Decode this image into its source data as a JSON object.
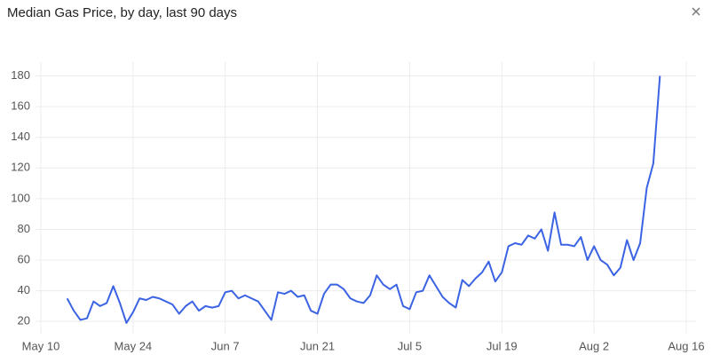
{
  "chart_data": {
    "type": "line",
    "title": "Median Gas Price, by day, last 90 days",
    "x": [
      "May 14",
      "May 15",
      "May 16",
      "May 17",
      "May 18",
      "May 19",
      "May 20",
      "May 21",
      "May 22",
      "May 23",
      "May 24",
      "May 25",
      "May 26",
      "May 27",
      "May 28",
      "May 29",
      "May 30",
      "May 31",
      "Jun 1",
      "Jun 2",
      "Jun 3",
      "Jun 4",
      "Jun 5",
      "Jun 6",
      "Jun 7",
      "Jun 8",
      "Jun 9",
      "Jun 10",
      "Jun 11",
      "Jun 12",
      "Jun 13",
      "Jun 14",
      "Jun 15",
      "Jun 16",
      "Jun 17",
      "Jun 18",
      "Jun 19",
      "Jun 20",
      "Jun 21",
      "Jun 22",
      "Jun 23",
      "Jun 24",
      "Jun 25",
      "Jun 26",
      "Jun 27",
      "Jun 28",
      "Jun 29",
      "Jun 30",
      "Jul 1",
      "Jul 2",
      "Jul 3",
      "Jul 4",
      "Jul 5",
      "Jul 6",
      "Jul 7",
      "Jul 8",
      "Jul 9",
      "Jul 10",
      "Jul 11",
      "Jul 12",
      "Jul 13",
      "Jul 14",
      "Jul 15",
      "Jul 16",
      "Jul 17",
      "Jul 18",
      "Jul 19",
      "Jul 20",
      "Jul 21",
      "Jul 22",
      "Jul 23",
      "Jul 24",
      "Jul 25",
      "Jul 26",
      "Jul 27",
      "Jul 28",
      "Jul 29",
      "Jul 30",
      "Jul 31",
      "Aug 1",
      "Aug 2",
      "Aug 3",
      "Aug 4",
      "Aug 5",
      "Aug 6",
      "Aug 7",
      "Aug 8",
      "Aug 9",
      "Aug 10",
      "Aug 11",
      "Aug 12"
    ],
    "series": [
      {
        "color": "#3b63e3",
        "values": [
          35,
          27,
          21,
          22,
          33,
          30,
          32,
          43,
          32,
          19,
          26,
          35,
          34,
          36,
          35,
          33,
          31,
          25,
          30,
          33,
          27,
          30,
          29,
          30,
          39,
          40,
          35,
          37,
          35,
          33,
          27,
          21,
          39,
          38,
          40,
          36,
          37,
          27,
          25,
          38,
          44,
          44,
          41,
          35,
          33,
          32,
          37,
          50,
          44,
          41,
          44,
          30,
          28,
          39,
          40,
          50,
          43,
          36,
          32,
          29,
          47,
          43,
          48,
          52,
          59,
          46,
          52,
          69,
          71,
          70,
          76,
          74,
          80,
          66,
          91,
          70,
          70,
          69,
          75,
          60,
          69,
          60,
          57,
          50,
          55,
          73,
          60,
          71,
          107,
          123,
          180
        ]
      }
    ],
    "xlim": [
      "May 10",
      "Aug 16"
    ],
    "xticks": [
      "May 10",
      "May 24",
      "Jun 7",
      "Jun 21",
      "Jul 5",
      "Jul 19",
      "Aug 2",
      "Aug 16"
    ],
    "ylim": [
      12,
      189
    ],
    "yticks": [
      20,
      40,
      60,
      80,
      100,
      120,
      140,
      160,
      180
    ],
    "grid": true
  }
}
